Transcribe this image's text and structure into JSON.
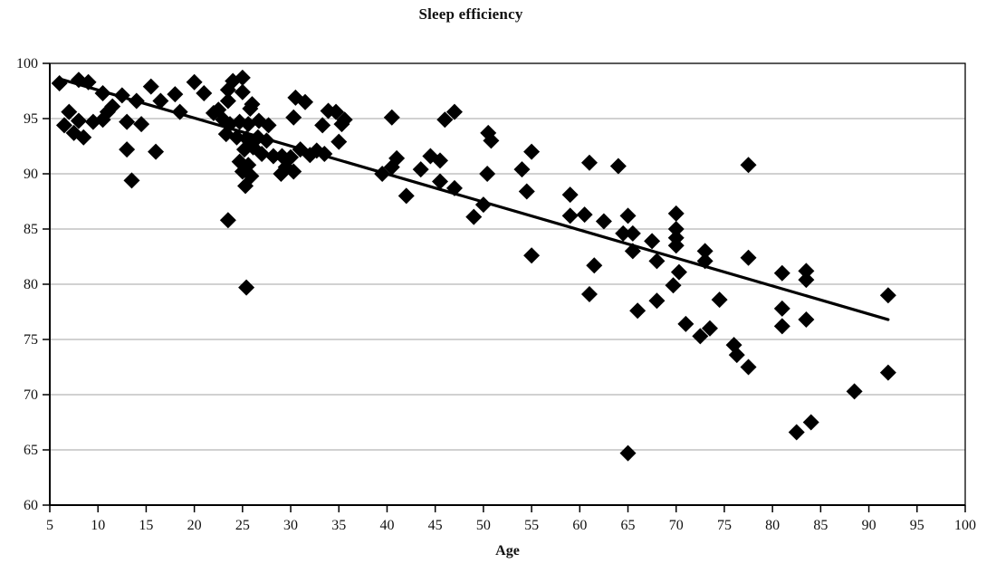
{
  "title": "Sleep efficiency",
  "chart_data": {
    "type": "scatter",
    "title": "Sleep efficiency",
    "xlabel": "Age",
    "ylabel": "",
    "x_range": [
      5,
      100
    ],
    "y_range": [
      60,
      100
    ],
    "x_ticks": [
      5,
      10,
      15,
      20,
      25,
      30,
      35,
      40,
      45,
      50,
      55,
      60,
      65,
      70,
      75,
      80,
      85,
      90,
      95,
      100
    ],
    "y_ticks": [
      60,
      65,
      70,
      75,
      80,
      85,
      90,
      95,
      100
    ],
    "grid": "horizontal",
    "legend": "none",
    "marker": "diamond",
    "marker_color": "#000000",
    "gridline_color": "#a3a3a3",
    "axis_color": "#000000",
    "series": [
      {
        "name": "Sleep efficiency",
        "points": [
          [
            6,
            98.2
          ],
          [
            8,
            98.5
          ],
          [
            9,
            98.3
          ],
          [
            10.5,
            97.3
          ],
          [
            12.5,
            97.1
          ],
          [
            15.5,
            97.9
          ],
          [
            18,
            97.2
          ],
          [
            20,
            98.3
          ],
          [
            21,
            97.3
          ],
          [
            7,
            95.6
          ],
          [
            6.5,
            94.4
          ],
          [
            8,
            94.8
          ],
          [
            7.5,
            93.7
          ],
          [
            8.5,
            93.3
          ],
          [
            9.5,
            94.7
          ],
          [
            10.5,
            94.9
          ],
          [
            11,
            95.6
          ],
          [
            11.5,
            96.1
          ],
          [
            13,
            94.7
          ],
          [
            14,
            96.6
          ],
          [
            14.5,
            94.5
          ],
          [
            16.5,
            96.6
          ],
          [
            18.5,
            95.6
          ],
          [
            22,
            95.5
          ],
          [
            22.5,
            95.8
          ],
          [
            13,
            92.2
          ],
          [
            16,
            92
          ],
          [
            13.5,
            89.4
          ],
          [
            24,
            98.4
          ],
          [
            25,
            98.7
          ],
          [
            23.5,
            97.6
          ],
          [
            25,
            97.4
          ],
          [
            23.5,
            96.6
          ],
          [
            26,
            96.3
          ],
          [
            25.8,
            95.9
          ],
          [
            23,
            94.9
          ],
          [
            23.7,
            94.5
          ],
          [
            24.7,
            94.7
          ],
          [
            25.6,
            94.5
          ],
          [
            26.7,
            94.8
          ],
          [
            23.3,
            93.6
          ],
          [
            24.4,
            93.3
          ],
          [
            25.4,
            93.2
          ],
          [
            26.6,
            93.3
          ],
          [
            27.7,
            94.4
          ],
          [
            27.5,
            93
          ],
          [
            25.2,
            92.2
          ],
          [
            26.1,
            92.4
          ],
          [
            27,
            91.8
          ],
          [
            28.2,
            91.6
          ],
          [
            29.1,
            91.6
          ],
          [
            24.7,
            91.1
          ],
          [
            25.6,
            90.8
          ],
          [
            25,
            90.2
          ],
          [
            25.9,
            89.8
          ],
          [
            25.3,
            88.9
          ],
          [
            23.5,
            85.8
          ],
          [
            25.4,
            79.7
          ],
          [
            30.5,
            96.9
          ],
          [
            31.5,
            96.5
          ],
          [
            30.3,
            95.1
          ],
          [
            33.9,
            95.7
          ],
          [
            34.7,
            95.6
          ],
          [
            35.6,
            94.9
          ],
          [
            35.3,
            94.5
          ],
          [
            33.3,
            94.4
          ],
          [
            35,
            92.9
          ],
          [
            30,
            91.5
          ],
          [
            31,
            92.2
          ],
          [
            32,
            91.7
          ],
          [
            32.7,
            92.1
          ],
          [
            33.5,
            91.8
          ],
          [
            29.5,
            90.6
          ],
          [
            30.3,
            90.2
          ],
          [
            29,
            90
          ],
          [
            40.5,
            95.1
          ],
          [
            46,
            94.9
          ],
          [
            47,
            95.6
          ],
          [
            39.5,
            90
          ],
          [
            40.5,
            90.6
          ],
          [
            41,
            91.4
          ],
          [
            43.5,
            90.4
          ],
          [
            44.5,
            91.6
          ],
          [
            45.5,
            91.2
          ],
          [
            42,
            88
          ],
          [
            45.5,
            89.3
          ],
          [
            47,
            88.7
          ],
          [
            50.5,
            93.7
          ],
          [
            50.8,
            93
          ],
          [
            49,
            86.1
          ],
          [
            50,
            87.2
          ],
          [
            50.4,
            90
          ],
          [
            54,
            90.4
          ],
          [
            54.5,
            88.4
          ],
          [
            55,
            92
          ],
          [
            55,
            82.6
          ],
          [
            59,
            88.1
          ],
          [
            59,
            86.2
          ],
          [
            60.5,
            86.3
          ],
          [
            61,
            91
          ],
          [
            61,
            79.1
          ],
          [
            61.5,
            81.7
          ],
          [
            62.5,
            85.7
          ],
          [
            64,
            90.7
          ],
          [
            65,
            86.2
          ],
          [
            64.5,
            84.6
          ],
          [
            65.5,
            84.6
          ],
          [
            65.5,
            83
          ],
          [
            65,
            64.7
          ],
          [
            66,
            77.6
          ],
          [
            67.5,
            83.9
          ],
          [
            68,
            82.1
          ],
          [
            68,
            78.5
          ],
          [
            70,
            86.4
          ],
          [
            70,
            85
          ],
          [
            70,
            84.2
          ],
          [
            70,
            83.5
          ],
          [
            70.3,
            81.1
          ],
          [
            69.7,
            79.9
          ],
          [
            71,
            76.4
          ],
          [
            72.5,
            75.3
          ],
          [
            73.5,
            76
          ],
          [
            73,
            83
          ],
          [
            73,
            82.1
          ],
          [
            74.5,
            78.6
          ],
          [
            76,
            74.5
          ],
          [
            76.3,
            73.6
          ],
          [
            77.5,
            72.5
          ],
          [
            77.5,
            82.4
          ],
          [
            77.5,
            90.8
          ],
          [
            81,
            81
          ],
          [
            83.5,
            81.2
          ],
          [
            83.5,
            80.4
          ],
          [
            81,
            77.8
          ],
          [
            83.5,
            76.8
          ],
          [
            81,
            76.2
          ],
          [
            82.5,
            66.6
          ],
          [
            84,
            67.5
          ],
          [
            88.5,
            70.3
          ],
          [
            92,
            79
          ],
          [
            92,
            72
          ]
        ]
      }
    ],
    "trend_line": {
      "x1": 6,
      "y1": 98.6,
      "x2": 92,
      "y2": 76.8,
      "color": "#000000"
    }
  }
}
